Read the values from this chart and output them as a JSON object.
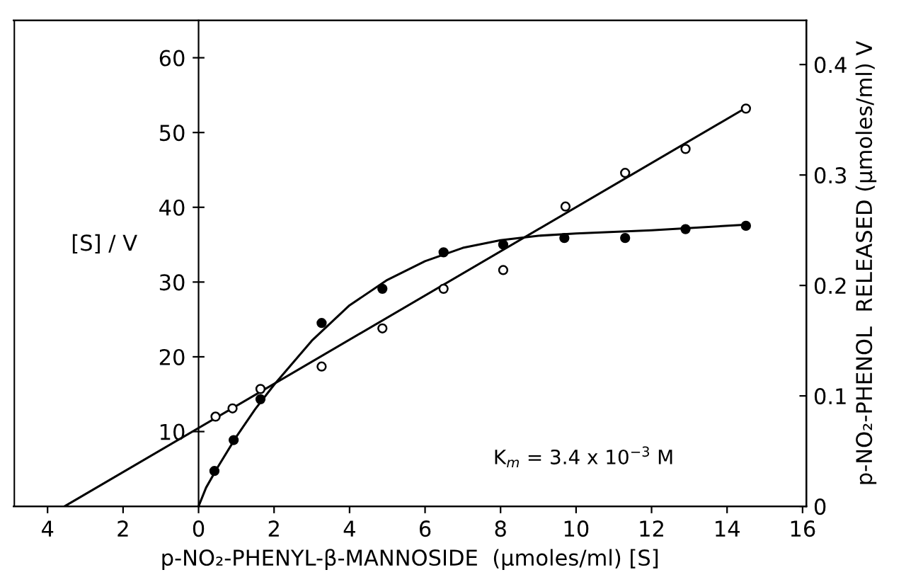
{
  "chart_data": {
    "type": "scatter",
    "xlabel": "p-NO₂-PHENYL-β-MANNOSIDE  (μmoles/ml) [S]",
    "ylabel": "[S] / V",
    "y2label": "p-NO₂-PHENOL  RELEASED (μmoles/ml) V",
    "annotations": [
      "K$_{m}$ = 3.4 x 10$^{−3}$ M"
    ],
    "xlim": [
      -4.9,
      16.1
    ],
    "xticks": [
      {
        "value": -4,
        "label": "4"
      },
      {
        "value": -2,
        "label": "2"
      },
      0,
      2,
      4,
      6,
      8,
      10,
      12,
      14,
      16
    ],
    "ylim": [
      0,
      65
    ],
    "yticks": [
      10,
      20,
      30,
      40,
      50,
      60
    ],
    "y2lim": [
      0,
      0.44
    ],
    "y2ticks": [
      0,
      0.1,
      0.2,
      0.3,
      0.4
    ],
    "grid": false,
    "legend": false,
    "series": [
      {
        "marker": "circle",
        "color": "#000000",
        "x": [
          0.45,
          0.9,
          1.64,
          3.26,
          4.87,
          6.49,
          8.07,
          9.72,
          11.3,
          12.9,
          14.5
        ],
        "values": [
          12.0,
          13.1,
          15.7,
          18.7,
          23.8,
          29.1,
          31.6,
          40.1,
          44.6,
          47.8,
          53.2
        ]
      },
      {
        "type": "line",
        "marker": "none",
        "color": "#000000",
        "x": [
          -3.55,
          14.5
        ],
        "values": [
          0,
          53.3
        ]
      },
      {
        "marker": "circle",
        "axis": "y2",
        "color": "#000000",
        "x": [
          0.42,
          0.93,
          1.64,
          3.26,
          4.87,
          6.49,
          8.07,
          9.69,
          11.3,
          12.9,
          14.5
        ],
        "values": [
          0.032,
          0.06,
          0.097,
          0.166,
          0.197,
          0.23,
          0.237,
          0.243,
          0.243,
          0.251,
          0.254
        ]
      },
      {
        "type": "line",
        "marker": "none",
        "axis": "y2",
        "color": "#000000",
        "x": [
          0,
          0.2,
          0.5,
          1,
          1.5,
          2,
          3,
          4,
          5,
          6,
          7,
          8,
          9,
          10,
          12,
          14.5
        ],
        "values": [
          0,
          0.017,
          0.035,
          0.063,
          0.088,
          0.11,
          0.15,
          0.182,
          0.205,
          0.222,
          0.234,
          0.241,
          0.245,
          0.247,
          0.25,
          0.255
        ]
      }
    ]
  }
}
